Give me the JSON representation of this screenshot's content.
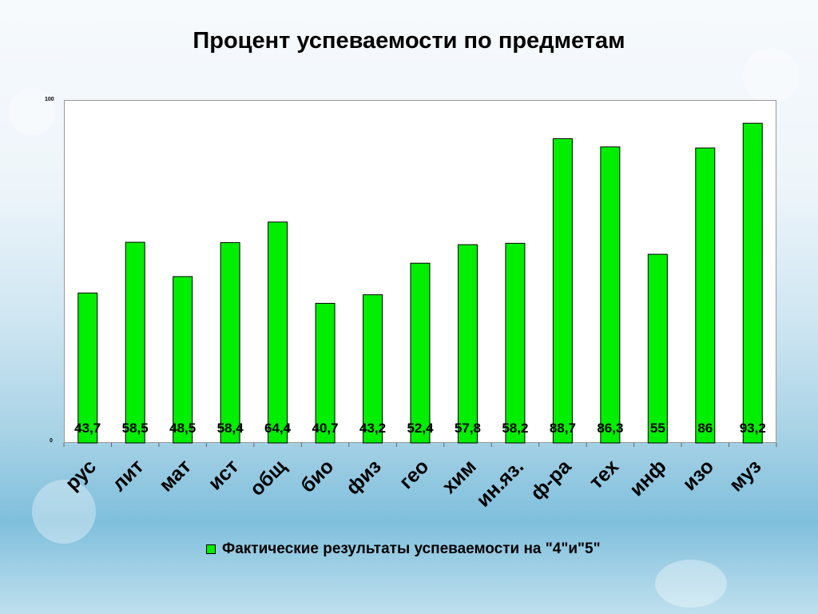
{
  "slide_title": "Процент успеваемости  по предметам",
  "chart_data": {
    "type": "bar",
    "categories": [
      "рус",
      "лит",
      "мат",
      "ист",
      "общ",
      "био",
      "физ",
      "гео",
      "хим",
      "ин.яз.",
      "ф-ра",
      "тех",
      "инф",
      "изо",
      "муз"
    ],
    "series": [
      {
        "name": "Фактические результаты успеваемости на \"4\"и\"5\"",
        "values": [
          43.7,
          58.5,
          48.5,
          58.4,
          64.4,
          40.7,
          43.2,
          52.4,
          57.8,
          58.2,
          88.7,
          86.3,
          55,
          86,
          93.2
        ],
        "labels": [
          "43,7",
          "58,5",
          "48,5",
          "58,4",
          "64,4",
          "40,7",
          "43,2",
          "52,4",
          "57,8",
          "58,2",
          "88,7",
          "86,3",
          "55",
          "86",
          "93,2"
        ]
      }
    ],
    "yticks": [
      "100",
      "0"
    ],
    "ylim": [
      0,
      100
    ],
    "bar_color": "#00ee00",
    "legend_position": "bottom",
    "grid": false
  }
}
